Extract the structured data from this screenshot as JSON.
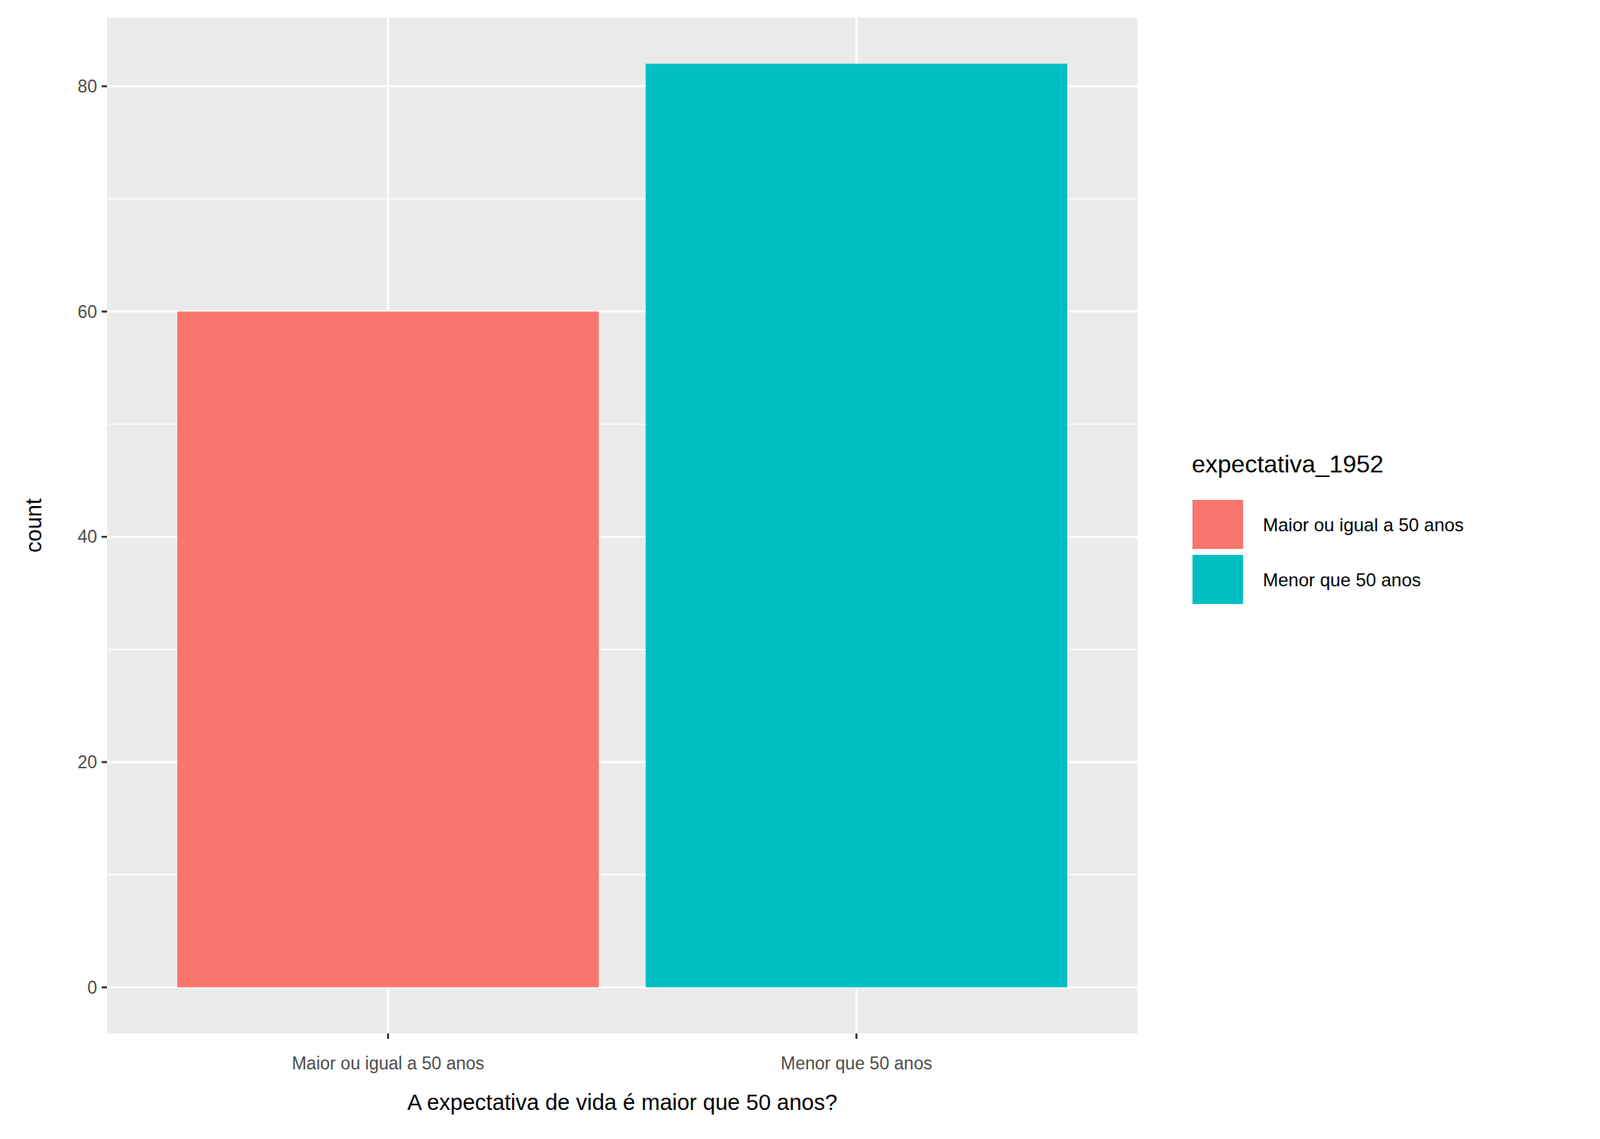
{
  "chart_data": {
    "type": "bar",
    "categories": [
      "Maior ou igual a 50 anos",
      "Menor que 50 anos"
    ],
    "values": [
      60,
      82
    ],
    "colors": [
      "#F8766D",
      "#00BFC4"
    ],
    "x_label": "A expectativa de vida é maior que 50 anos?",
    "y_label": "count",
    "legend_title": "expectativa_1952",
    "legend": "right",
    "ylim": [
      -4.1,
      86.1
    ],
    "yticks": [
      0,
      20,
      40,
      60,
      80
    ],
    "grid": true
  }
}
